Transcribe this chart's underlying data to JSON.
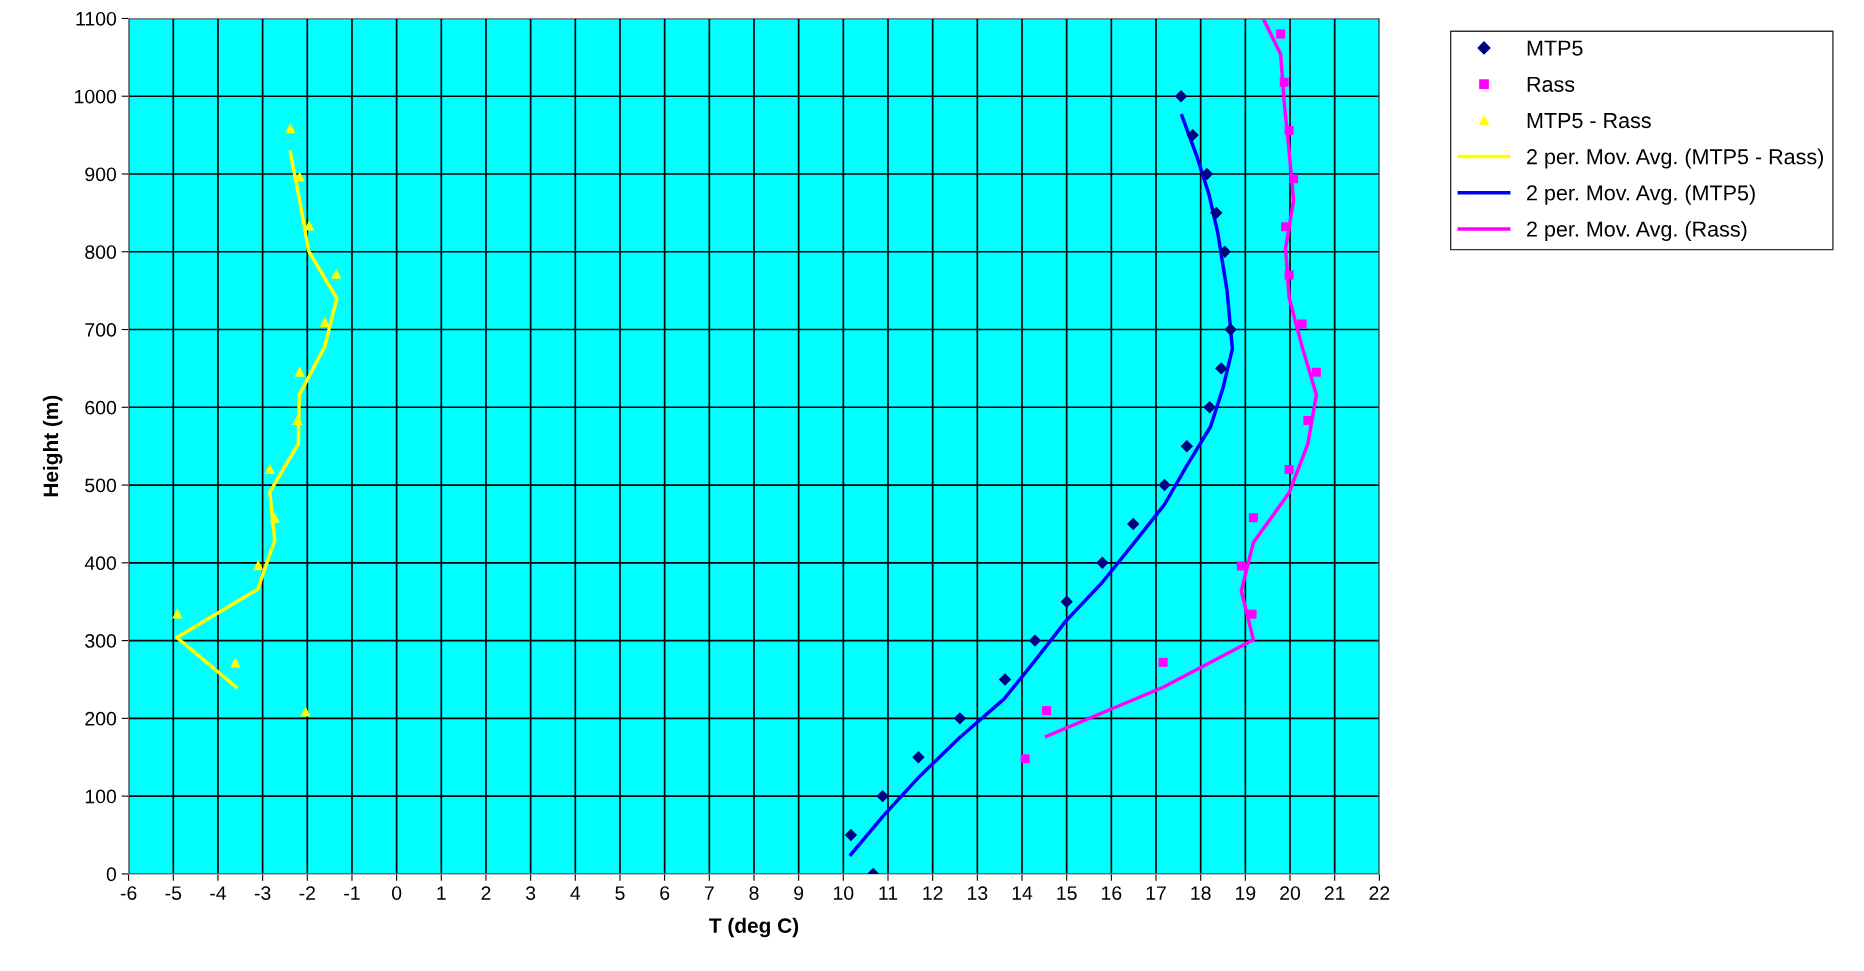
{
  "chart_data": {
    "type": "scatter",
    "xlabel": "T (deg C)",
    "ylabel": "Height (m)",
    "xlim": [
      -6,
      22
    ],
    "xticks": [
      -6,
      -5,
      -4,
      -3,
      -2,
      -1,
      0,
      1,
      2,
      3,
      4,
      5,
      6,
      7,
      8,
      9,
      10,
      11,
      12,
      13,
      14,
      15,
      16,
      17,
      18,
      19,
      20,
      21,
      22
    ],
    "ylim": [
      0,
      1100
    ],
    "yticks": [
      0,
      100,
      200,
      300,
      400,
      500,
      600,
      700,
      800,
      900,
      1000,
      1100
    ],
    "grid": true,
    "legend": "right",
    "series": [
      {
        "name": "MTP5",
        "marker": "diamond",
        "color": "#000080",
        "x": [
          10.67,
          10.17,
          10.88,
          11.68,
          12.61,
          13.62,
          14.29,
          15.0,
          15.8,
          16.49,
          17.19,
          17.69,
          18.2,
          18.46,
          18.67,
          18.54,
          18.35,
          18.14,
          17.82,
          17.56
        ],
        "values": [
          0,
          50,
          100,
          150,
          200,
          250,
          300,
          350,
          400,
          450,
          500,
          550,
          600,
          650,
          700,
          800,
          850,
          900,
          950,
          1000
        ]
      },
      {
        "name": "Rass",
        "marker": "square",
        "color": "#ff00ff",
        "x": [
          14.07,
          14.55,
          17.16,
          19.15,
          18.91,
          19.18,
          19.98,
          20.4,
          20.59,
          20.27,
          19.98,
          19.9,
          20.08,
          19.98,
          19.87,
          19.79
        ],
        "values": [
          148,
          210,
          272,
          334,
          396,
          458,
          520,
          583,
          645,
          707,
          770,
          832,
          894,
          956,
          1018,
          1080
        ]
      },
      {
        "name": "MTP5 - Rass",
        "marker": "triangle",
        "color": "#ffff00",
        "x": [
          -2.04,
          -3.61,
          -4.91,
          -3.1,
          -2.73,
          -2.84,
          -2.22,
          -2.17,
          -1.61,
          -1.35,
          -1.96,
          -2.17,
          -2.38
        ],
        "values": [
          209,
          272,
          335,
          397,
          458,
          521,
          584,
          646,
          710,
          772,
          834,
          897,
          959
        ]
      },
      {
        "name": "2 per. Mov. Avg. (MTP5 - Rass)",
        "type": "line",
        "marker": "none",
        "color": "#ffff00",
        "x": [
          -3.59,
          -4.92,
          -3.11,
          -2.73,
          -2.84,
          -2.2,
          -2.18,
          -1.61,
          -1.34,
          -1.97,
          -2.17,
          -2.38
        ],
        "values": [
          240,
          304,
          366,
          429,
          491,
          553,
          616,
          678,
          740,
          801,
          866,
          928
        ]
      },
      {
        "name": "2 per. Mov. Avg. (MTP5)",
        "type": "line",
        "marker": "none",
        "color": "#0000ff",
        "x": [
          10.17,
          10.9,
          11.7,
          12.6,
          13.6,
          14.3,
          14.98,
          15.8,
          16.5,
          17.19,
          17.69,
          18.22,
          18.5,
          18.71,
          18.59,
          18.38,
          18.18,
          17.9,
          17.58
        ],
        "values": [
          25,
          75,
          125,
          175,
          225,
          275,
          325,
          375,
          425,
          475,
          525,
          575,
          625,
          675,
          750,
          825,
          875,
          925,
          975
        ]
      },
      {
        "name": "2 per. Mov. Avg. (Rass)",
        "type": "line",
        "marker": "none",
        "color": "#ff00ff",
        "x": [
          14.55,
          17.16,
          19.18,
          18.91,
          19.18,
          19.98,
          20.4,
          20.59,
          20.27,
          19.98,
          19.9,
          20.08,
          19.98,
          19.87,
          19.79,
          19.4
        ],
        "values": [
          177,
          240,
          301,
          364,
          426,
          490,
          553,
          616,
          678,
          741,
          804,
          866,
          929,
          992,
          1054,
          1100
        ]
      }
    ]
  }
}
